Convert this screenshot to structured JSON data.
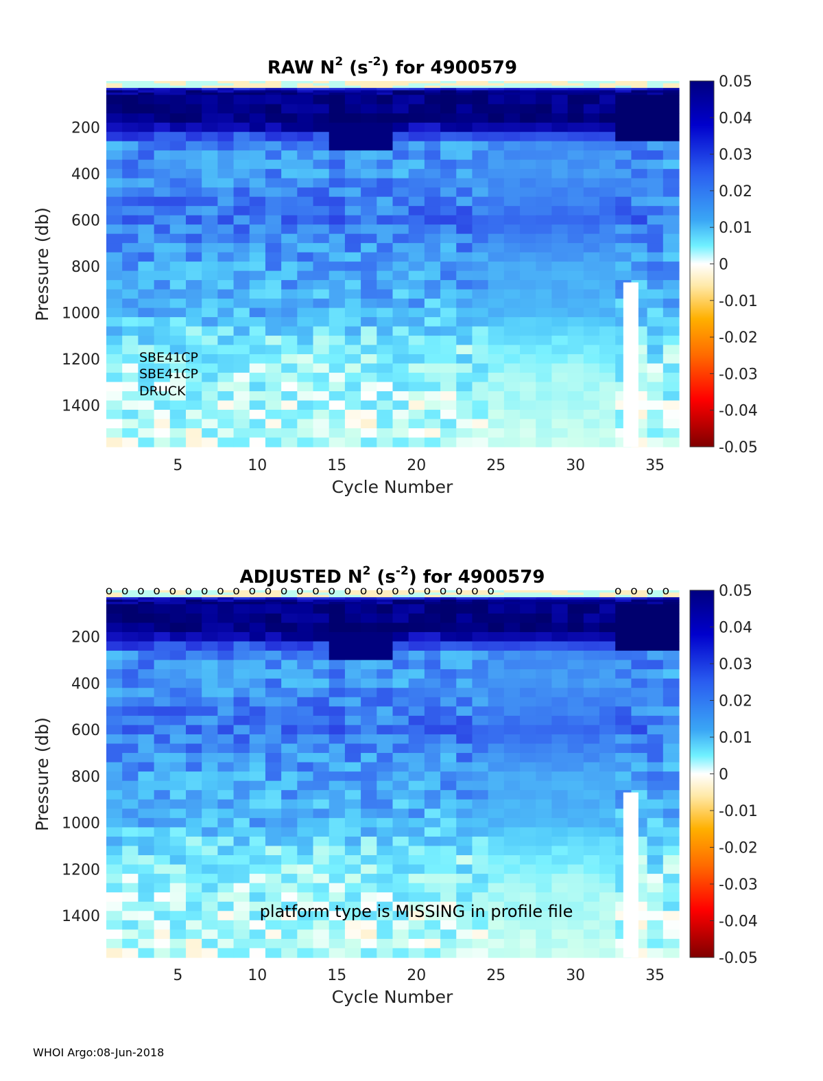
{
  "footer": "WHOI Argo:08-Jun-2018",
  "chart_data": [
    {
      "type": "heatmap",
      "title_prefix": "RAW N",
      "title_sup1": "2",
      "title_mid": " (s",
      "title_sup2": "-2",
      "title_suffix": ") for 4900579",
      "xlabel": "Cycle Number",
      "ylabel": "Pressure (db)",
      "xlim": [
        1,
        36
      ],
      "ylim": [
        0,
        1580
      ],
      "y_reversed": true,
      "xticks": [
        5,
        10,
        15,
        20,
        25,
        30,
        35
      ],
      "yticks": [
        200,
        400,
        600,
        800,
        1000,
        1200,
        1400
      ],
      "colorbar": {
        "min": -0.05,
        "max": 0.05,
        "ticks": [
          "0.05",
          "0.04",
          "0.03",
          "0.02",
          "0.01",
          "0",
          "-0.01",
          "-0.02",
          "-0.03",
          "-0.04",
          "-0.05"
        ]
      },
      "missing_profile": {
        "cycle": 33.5,
        "from_pressure": 870,
        "to_pressure": 1580
      },
      "annotations": [
        "SBE41CP",
        "SBE41CP",
        "DRUCK"
      ],
      "qc_markers": []
    },
    {
      "type": "heatmap",
      "title_prefix": "ADJUSTED N",
      "title_sup1": "2",
      "title_mid": " (s",
      "title_sup2": "-2",
      "title_suffix": ") for 4900579",
      "xlabel": "Cycle Number",
      "ylabel": "Pressure (db)",
      "xlim": [
        1,
        36
      ],
      "ylim": [
        0,
        1580
      ],
      "y_reversed": true,
      "xticks": [
        5,
        10,
        15,
        20,
        25,
        30,
        35
      ],
      "yticks": [
        200,
        400,
        600,
        800,
        1000,
        1200,
        1400
      ],
      "colorbar": {
        "min": -0.05,
        "max": 0.05,
        "ticks": [
          "0.05",
          "0.04",
          "0.03",
          "0.02",
          "0.01",
          "0",
          "-0.01",
          "-0.02",
          "-0.03",
          "-0.04",
          "-0.05"
        ]
      },
      "missing_profile": {
        "cycle": 33.5,
        "from_pressure": 870,
        "to_pressure": 1580
      },
      "annotations": [
        "platform type is MISSING in profile file"
      ],
      "qc_markers": [
        {
          "cycle": 1,
          "label": "o"
        },
        {
          "cycle": 2,
          "label": "o"
        },
        {
          "cycle": 3,
          "label": "o"
        },
        {
          "cycle": 4,
          "label": "o"
        },
        {
          "cycle": 5,
          "label": "o"
        },
        {
          "cycle": 6,
          "label": "o"
        },
        {
          "cycle": 7,
          "label": "o"
        },
        {
          "cycle": 8,
          "label": "o"
        },
        {
          "cycle": 9,
          "label": "o"
        },
        {
          "cycle": 10,
          "label": "o"
        },
        {
          "cycle": 11,
          "label": "o"
        },
        {
          "cycle": 12,
          "label": "o"
        },
        {
          "cycle": 13,
          "label": "o"
        },
        {
          "cycle": 14,
          "label": "o"
        },
        {
          "cycle": 15,
          "label": "o"
        },
        {
          "cycle": 16,
          "label": "o"
        },
        {
          "cycle": 17,
          "label": "o"
        },
        {
          "cycle": 18,
          "label": "o"
        },
        {
          "cycle": 19,
          "label": "o"
        },
        {
          "cycle": 20,
          "label": "o"
        },
        {
          "cycle": 21,
          "label": "o"
        },
        {
          "cycle": 22,
          "label": "o"
        },
        {
          "cycle": 23,
          "label": "o"
        },
        {
          "cycle": 24,
          "label": "o"
        },
        {
          "cycle": 25,
          "label": "o"
        },
        {
          "cycle": 33,
          "label": "o"
        },
        {
          "cycle": 34,
          "label": "o"
        },
        {
          "cycle": 35,
          "label": "o"
        },
        {
          "cycle": 36,
          "label": "o"
        }
      ]
    }
  ],
  "field_profile": [
    {
      "p": 10,
      "v": -0.003
    },
    {
      "p": 40,
      "v": 0.045
    },
    {
      "p": 120,
      "v": 0.05
    },
    {
      "p": 200,
      "v": 0.042
    },
    {
      "p": 260,
      "v": 0.02
    },
    {
      "p": 400,
      "v": 0.019
    },
    {
      "p": 600,
      "v": 0.023
    },
    {
      "p": 800,
      "v": 0.017
    },
    {
      "p": 1000,
      "v": 0.015
    },
    {
      "p": 1100,
      "v": 0.01
    },
    {
      "p": 1250,
      "v": 0.006
    },
    {
      "p": 1450,
      "v": 0.004
    },
    {
      "p": 1580,
      "v": 0.003
    }
  ]
}
